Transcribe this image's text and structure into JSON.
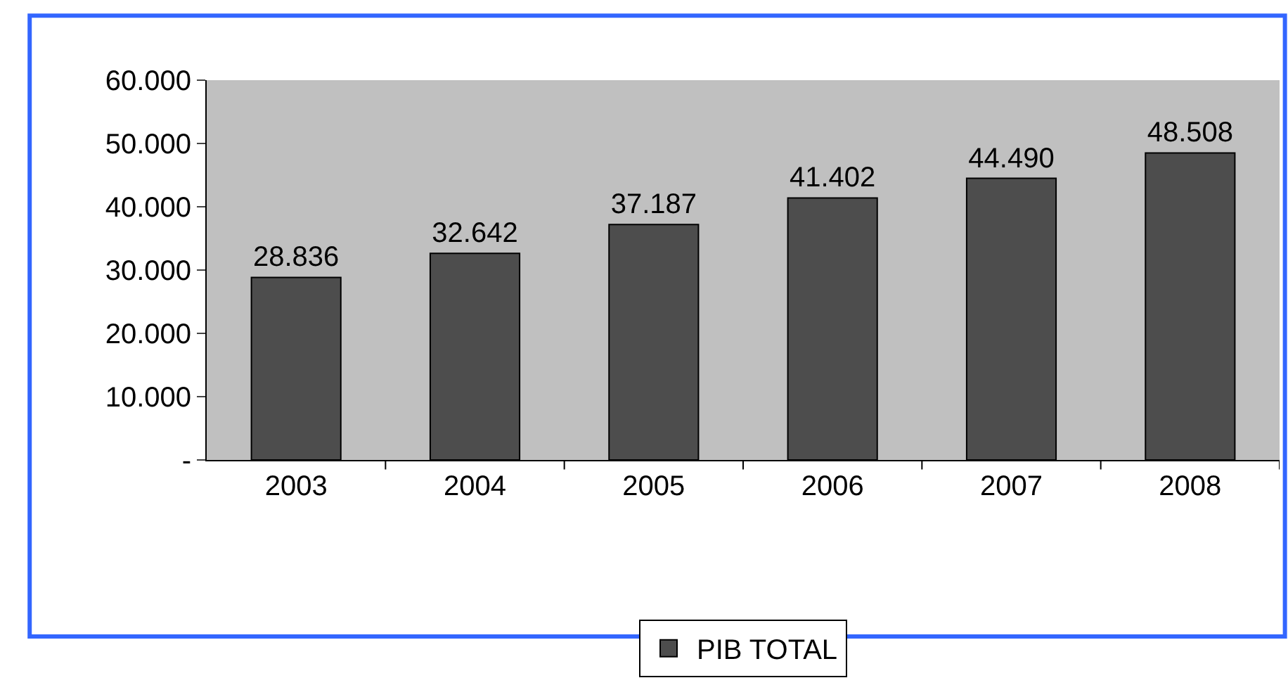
{
  "chart_data": {
    "type": "bar",
    "categories": [
      "2003",
      "2004",
      "2005",
      "2006",
      "2007",
      "2008"
    ],
    "series": [
      {
        "name": "PIB TOTAL",
        "color": "#4d4d4d",
        "values": [
          28836,
          32642,
          37187,
          41402,
          44490,
          48508
        ],
        "value_labels": [
          "28.836",
          "32.642",
          "37.187",
          "41.402",
          "44.490",
          "48.508"
        ]
      }
    ],
    "ylim": [
      0,
      60000
    ],
    "yticks": [
      {
        "value": 0,
        "label": "-"
      },
      {
        "value": 10000,
        "label": "10.000"
      },
      {
        "value": 20000,
        "label": "20.000"
      },
      {
        "value": 30000,
        "label": "30.000"
      },
      {
        "value": 40000,
        "label": "40.000"
      },
      {
        "value": 50000,
        "label": "50.000"
      },
      {
        "value": 60000,
        "label": "60.000"
      }
    ],
    "grid": false,
    "legend": "bottom"
  }
}
